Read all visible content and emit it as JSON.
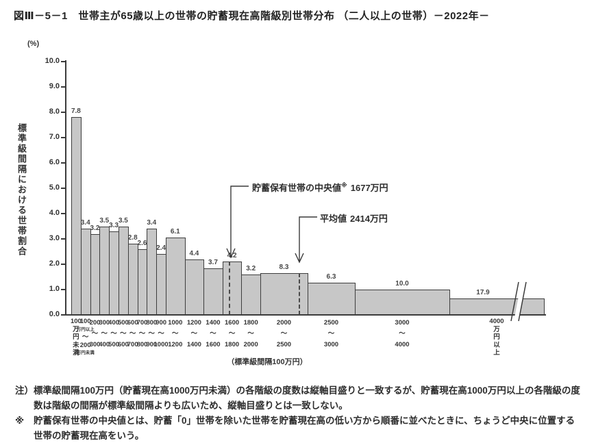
{
  "title": "図Ⅲ－5－1　世帯主が65歳以上の世帯の貯蓄現在高階級別世帯分布 （二人以上の世帯）－2022年－",
  "chart_data": {
    "type": "bar",
    "title": "世帯主が65歳以上の世帯の貯蓄現在高階級別世帯分布（二人以上の世帯）2022年",
    "y_unit": "(%)",
    "ylabel": "標準級間隔における世帯割合",
    "xlabel": "（標準級間隔100万円）",
    "ylim": [
      0,
      10
    ],
    "grid": false,
    "y_ticks": [
      "0.0",
      "1.0",
      "2.0",
      "3.0",
      "4.0",
      "5.0",
      "6.0",
      "7.0",
      "8.0",
      "9.0",
      "10.0"
    ],
    "categories": [
      "100万円未満",
      "100万円以上〜200万円未満",
      "200〜300",
      "300〜400",
      "400〜500",
      "500〜600",
      "600〜700",
      "700〜800",
      "800〜900",
      "900〜1000",
      "1000〜1200",
      "1200〜1400",
      "1400〜1600",
      "1600〜1800",
      "1800〜2000",
      "2000〜2500",
      "2500〜3000",
      "3000〜4000",
      "4000万円以上"
    ],
    "values_pct": [
      7.8,
      3.4,
      3.2,
      3.5,
      3.3,
      3.5,
      2.8,
      2.6,
      3.4,
      2.4,
      6.1,
      4.4,
      3.7,
      4.2,
      3.2,
      8.3,
      6.3,
      10.0,
      17.9
    ],
    "bar_value_labels": [
      "7.8",
      "3.4",
      "3.2",
      "3.5",
      "3.3",
      "3.5",
      "2.8",
      "2.6",
      "3.4",
      "2.4",
      "6.1",
      "4.4",
      "3.7",
      "4.2",
      "3.2",
      "8.3",
      "6.3",
      "10.0",
      "17.9"
    ],
    "class_width_100man": [
      1,
      1,
      1,
      1,
      1,
      1,
      1,
      1,
      1,
      1,
      2,
      2,
      2,
      2,
      2,
      5,
      5,
      10,
      10
    ],
    "drawn_height_pct": [
      7.8,
      3.4,
      3.2,
      3.5,
      3.3,
      3.5,
      2.8,
      2.6,
      3.4,
      2.4,
      3.05,
      2.2,
      1.85,
      2.1,
      1.6,
      1.66,
      1.26,
      1.0,
      0.65
    ],
    "x_tick_lines": [
      [
        "100",
        "万",
        "円",
        "未",
        "満"
      ],
      [
        "100",
        "万円以上",
        "〜",
        "200",
        "万円未満"
      ],
      [
        "200",
        "〜",
        "300"
      ],
      [
        "300",
        "〜",
        "400"
      ],
      [
        "400",
        "〜",
        "500"
      ],
      [
        "500",
        "〜",
        "600"
      ],
      [
        "600",
        "〜",
        "700"
      ],
      [
        "700",
        "〜",
        "800"
      ],
      [
        "800",
        "〜",
        "900"
      ],
      [
        "900",
        "〜",
        "1000"
      ],
      [
        "1000",
        "〜",
        "1200"
      ],
      [
        "1200",
        "〜",
        "1400"
      ],
      [
        "1400",
        "〜",
        "1600"
      ],
      [
        "1600",
        "〜",
        "1800"
      ],
      [
        "1800",
        "〜",
        "2000"
      ],
      [
        "2000",
        "〜",
        "2500"
      ],
      [
        "2500",
        "〜",
        "3000"
      ],
      [
        "3000",
        "〜",
        "4000"
      ],
      [
        "4000",
        "万",
        "円",
        "以",
        "上"
      ]
    ],
    "median": {
      "text": "貯蓄保有世帯の中央値",
      "marker": "※",
      "value_label": "1677万円",
      "value_man_yen": 1677,
      "bar_index": 13
    },
    "mean": {
      "text": "平均値",
      "value_label": "2414万円",
      "value_man_yen": 2414,
      "bar_index": 15
    },
    "axis_break_on_last_bar": true,
    "colors": {
      "bar_fill": "#c7c7c7",
      "bar_border": "#3d3d3d",
      "text": "#333333"
    }
  },
  "notes": [
    {
      "prefix": "注）",
      "text": "標準級間隔100万円（貯蓄現在高1000万円未満）の各階級の度数は縦軸目盛りと一致するが、貯蓄現在高1000万円以上の各階級の度数は階級の間隔が標準級間隔よりも広いため、縦軸目盛りとは一致しない。"
    },
    {
      "prefix": "※",
      "text": "貯蓄保有世帯の中央値とは、貯蓄「0」世帯を除いた世帯を貯蓄現在高の低い方から順番に並べたときに、ちょうど中央に位置する世帯の貯蓄現在高をいう。"
    }
  ]
}
